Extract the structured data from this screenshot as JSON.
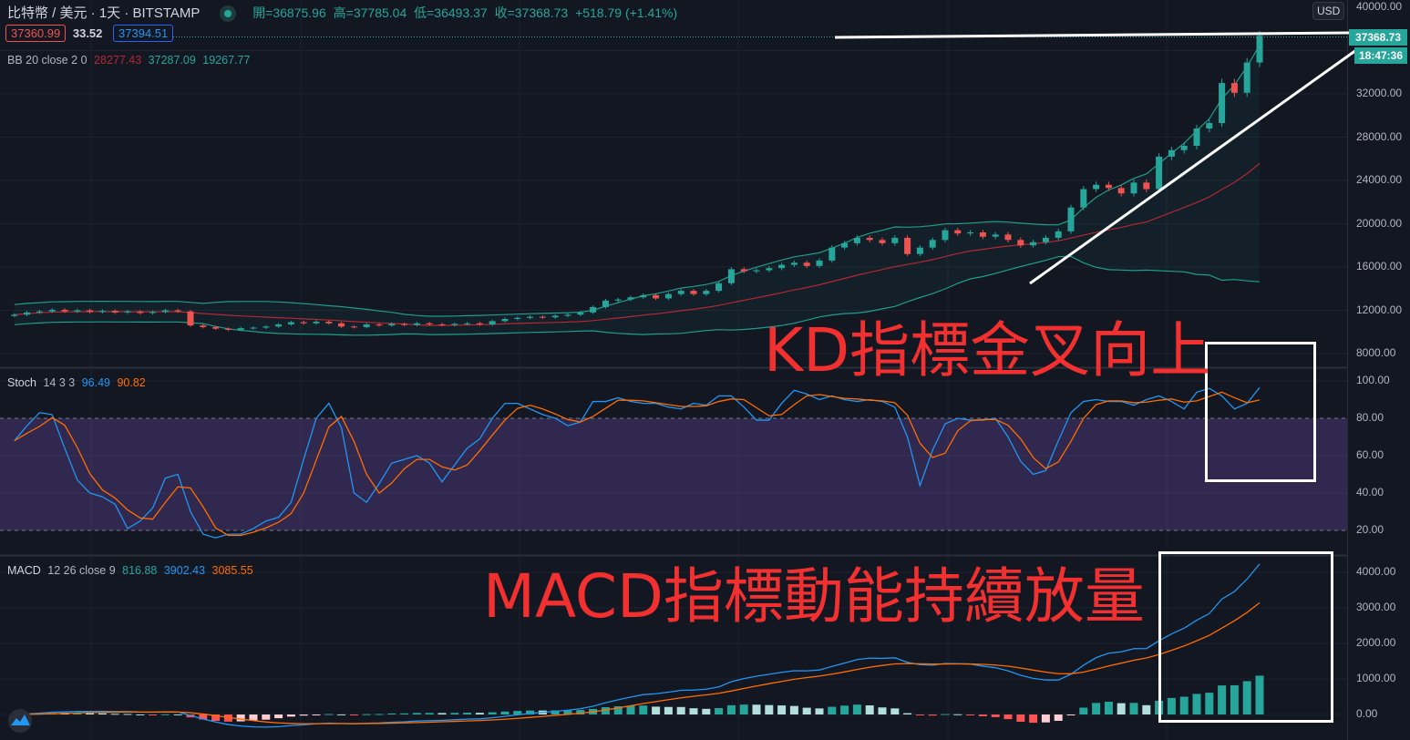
{
  "header": {
    "symbol": "比特幣 / 美元 · 1天 · BITSTAMP",
    "open": "開=36875.96",
    "high": "高=37785.04",
    "low": "低=36493.37",
    "close": "收=37368.73",
    "change": "+518.79 (+1.41%)",
    "sell_price": "37360.99",
    "spread": "33.52",
    "buy_price": "37394.51"
  },
  "bb_legend": {
    "name": "BB 20 close 2 0",
    "basis": "28277.43",
    "upper": "37287.09",
    "lower": "19267.77"
  },
  "stoch_legend": {
    "name": "Stoch",
    "params": "14 3 3",
    "k": "96.49",
    "d": "90.82"
  },
  "macd_legend": {
    "name": "MACD",
    "params": "12 26 close 9",
    "hist": "816.88",
    "macd": "3902.43",
    "signal": "3085.55"
  },
  "price_axis": {
    "currency": "USD",
    "ticks": [
      "40000.00",
      "32000.00",
      "28000.00",
      "24000.00",
      "20000.00",
      "16000.00",
      "12000.00",
      "8000.00"
    ],
    "last_price": "37368.73",
    "countdown": "18:47:36"
  },
  "stoch_axis": {
    "ticks": [
      "100.00",
      "80.00",
      "60.00",
      "40.00",
      "20.00"
    ]
  },
  "macd_axis": {
    "ticks": [
      "4000.00",
      "3000.00",
      "2000.00",
      "1000.00",
      "0.00"
    ]
  },
  "annotations": {
    "kd_text": "KD指標金叉向上",
    "macd_text": "MACD指標動能持續放量"
  },
  "colors": {
    "up": "#26a69a",
    "down": "#ef5350",
    "stoch_k": "#2196f3",
    "stoch_d": "#ff6d00",
    "annotation": "#f23030",
    "band": "#7e57c2"
  },
  "chart_data": [
    {
      "type": "candlestick",
      "title": "比特幣 / 美元 · 1天 · BITSTAMP",
      "ylim": [
        8000,
        40000
      ],
      "indicator": "BB 20 close 2 0",
      "close": [
        11600,
        11800,
        11900,
        12050,
        11900,
        12000,
        11850,
        11950,
        11800,
        11900,
        11750,
        11850,
        12000,
        11900,
        10600,
        10450,
        10300,
        10200,
        10350,
        10400,
        10500,
        10700,
        10900,
        10800,
        10950,
        10800,
        10500,
        10450,
        10700,
        10600,
        10750,
        10650,
        10800,
        10700,
        10650,
        10750,
        10800,
        10700,
        11000,
        11200,
        11300,
        11400,
        11350,
        11500,
        11600,
        11800,
        12300,
        12900,
        13000,
        13200,
        13400,
        13100,
        13500,
        13800,
        13500,
        13800,
        14500,
        15800,
        15600,
        15700,
        15900,
        16200,
        16400,
        16100,
        16600,
        17800,
        18200,
        18700,
        18500,
        18200,
        18700,
        17200,
        17800,
        18500,
        19400,
        19100,
        19200,
        18800,
        19000,
        18500,
        18000,
        18300,
        18700,
        19300,
        21500,
        23200,
        23600,
        23300,
        22800,
        23800,
        23200,
        26200,
        26800,
        27200,
        28800,
        29300,
        33000,
        32100,
        34900,
        37368.73
      ]
    },
    {
      "type": "line",
      "title": "Stoch 14 3 3",
      "ylim": [
        10,
        100
      ],
      "bands": [
        20,
        80
      ],
      "k": [
        68,
        76,
        83,
        82,
        64,
        47,
        40,
        38,
        34,
        21,
        25,
        32,
        48,
        50,
        30,
        18,
        16,
        18,
        18,
        21,
        25,
        27,
        35,
        58,
        80,
        88,
        75,
        40,
        35,
        45,
        56,
        58,
        60,
        56,
        46,
        55,
        64,
        69,
        80,
        88,
        88,
        85,
        82,
        80,
        76,
        78,
        89,
        89,
        91,
        89,
        88,
        88,
        86,
        85,
        88,
        87,
        92,
        92,
        86,
        79,
        79,
        88,
        95,
        93,
        90,
        92,
        90,
        89,
        90,
        89,
        86,
        70,
        44,
        63,
        77,
        80,
        79,
        79,
        80,
        70,
        57,
        50,
        52,
        68,
        83,
        89,
        90,
        89,
        89,
        87,
        90,
        92,
        89,
        85,
        94,
        96,
        92,
        85,
        88,
        96.49
      ]
    },
    {
      "type": "bar",
      "title": "MACD 12 26 close 9",
      "ylim": [
        -300,
        4300
      ]
    }
  ]
}
